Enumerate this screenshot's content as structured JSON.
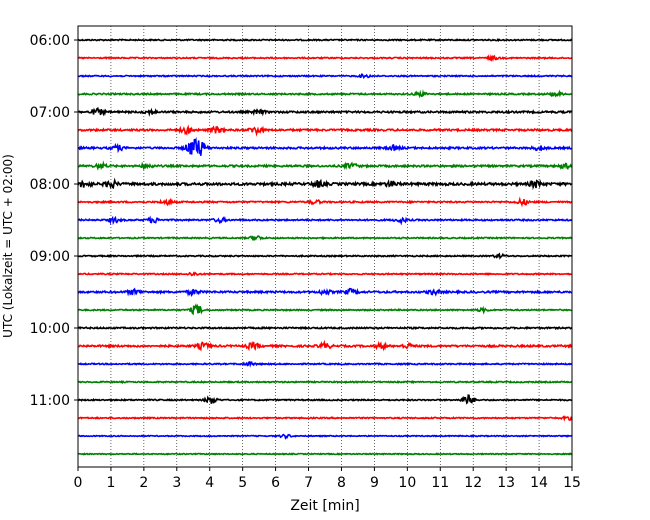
{
  "chart_data": {
    "type": "line",
    "title": "",
    "xlabel": "Zeit  [min]",
    "ylabel": "UTC (Lokalzeit = UTC + 02:00)",
    "xlim": [
      0,
      15
    ],
    "x_ticks": [
      "0",
      "1",
      "2",
      "3",
      "4",
      "5",
      "6",
      "7",
      "8",
      "9",
      "10",
      "11",
      "12",
      "13",
      "14",
      "15"
    ],
    "y_ticks": [
      "06:00",
      "07:00",
      "08:00",
      "09:00",
      "10:00",
      "11:00"
    ],
    "grid": "vertical dotted lines at each minute",
    "row_interval_min": 15,
    "row_colors": [
      "#000000",
      "#ff0000",
      "#0000ff",
      "#008000"
    ],
    "rows": [
      {
        "start": "06:00",
        "amplitude": 0.1,
        "events": []
      },
      {
        "start": "06:15",
        "amplitude": 0.1,
        "events": [
          {
            "t": 12.6,
            "amp": 0.25
          }
        ]
      },
      {
        "start": "06:30",
        "amplitude": 0.1,
        "events": [
          {
            "t": 8.7,
            "amp": 0.25
          }
        ]
      },
      {
        "start": "06:45",
        "amplitude": 0.12,
        "events": [
          {
            "t": 10.4,
            "amp": 0.3
          },
          {
            "t": 14.5,
            "amp": 0.3
          }
        ]
      },
      {
        "start": "07:00",
        "amplitude": 0.15,
        "events": [
          {
            "t": 0.6,
            "amp": 0.5
          },
          {
            "t": 2.2,
            "amp": 0.3
          },
          {
            "t": 5.5,
            "amp": 0.3
          }
        ]
      },
      {
        "start": "07:15",
        "amplitude": 0.15,
        "events": [
          {
            "t": 3.3,
            "amp": 0.5
          },
          {
            "t": 4.2,
            "amp": 0.5
          },
          {
            "t": 5.4,
            "amp": 0.6
          }
        ]
      },
      {
        "start": "07:30",
        "amplitude": 0.15,
        "events": [
          {
            "t": 1.2,
            "amp": 0.4
          },
          {
            "t": 3.45,
            "amp": 1.2
          },
          {
            "t": 3.7,
            "amp": 1.2
          },
          {
            "t": 9.6,
            "amp": 0.35
          },
          {
            "t": 14.0,
            "amp": 0.35
          }
        ]
      },
      {
        "start": "07:45",
        "amplitude": 0.15,
        "events": [
          {
            "t": 0.7,
            "amp": 0.35
          },
          {
            "t": 2.1,
            "amp": 0.35
          },
          {
            "t": 8.3,
            "amp": 0.4
          },
          {
            "t": 14.8,
            "amp": 0.35
          }
        ]
      },
      {
        "start": "08:00",
        "amplitude": 0.2,
        "events": [
          {
            "t": 0.2,
            "amp": 0.5
          },
          {
            "t": 1.0,
            "amp": 0.6
          },
          {
            "t": 7.3,
            "amp": 0.5
          },
          {
            "t": 9.5,
            "amp": 0.4
          },
          {
            "t": 13.9,
            "amp": 0.5
          }
        ]
      },
      {
        "start": "08:15",
        "amplitude": 0.12,
        "events": [
          {
            "t": 2.7,
            "amp": 0.35
          },
          {
            "t": 7.2,
            "amp": 0.3
          },
          {
            "t": 13.5,
            "amp": 0.45
          }
        ]
      },
      {
        "start": "08:30",
        "amplitude": 0.12,
        "events": [
          {
            "t": 1.1,
            "amp": 0.35
          },
          {
            "t": 2.3,
            "amp": 0.4
          },
          {
            "t": 4.3,
            "amp": 0.35
          },
          {
            "t": 9.8,
            "amp": 0.35
          }
        ]
      },
      {
        "start": "08:45",
        "amplitude": 0.1,
        "events": [
          {
            "t": 5.4,
            "amp": 0.4
          }
        ]
      },
      {
        "start": "09:00",
        "amplitude": 0.1,
        "events": [
          {
            "t": 12.8,
            "amp": 0.25
          }
        ]
      },
      {
        "start": "09:15",
        "amplitude": 0.1,
        "events": [
          {
            "t": 3.5,
            "amp": 0.25
          }
        ]
      },
      {
        "start": "09:30",
        "amplitude": 0.15,
        "events": [
          {
            "t": 1.7,
            "amp": 0.4
          },
          {
            "t": 3.5,
            "amp": 0.4
          },
          {
            "t": 7.5,
            "amp": 0.35
          },
          {
            "t": 8.3,
            "amp": 0.45
          },
          {
            "t": 10.8,
            "amp": 0.35
          }
        ]
      },
      {
        "start": "09:45",
        "amplitude": 0.1,
        "events": [
          {
            "t": 3.6,
            "amp": 0.8
          },
          {
            "t": 12.3,
            "amp": 0.25
          }
        ]
      },
      {
        "start": "10:00",
        "amplitude": 0.12,
        "events": []
      },
      {
        "start": "10:15",
        "amplitude": 0.15,
        "events": [
          {
            "t": 3.8,
            "amp": 0.5
          },
          {
            "t": 5.3,
            "amp": 0.45
          },
          {
            "t": 7.5,
            "amp": 0.45
          },
          {
            "t": 9.2,
            "amp": 0.35
          },
          {
            "t": 10.0,
            "amp": 0.35
          }
        ]
      },
      {
        "start": "10:30",
        "amplitude": 0.1,
        "events": [
          {
            "t": 5.2,
            "amp": 0.25
          }
        ]
      },
      {
        "start": "10:45",
        "amplitude": 0.1,
        "events": []
      },
      {
        "start": "11:00",
        "amplitude": 0.1,
        "events": [
          {
            "t": 4.05,
            "amp": 0.6
          },
          {
            "t": 11.85,
            "amp": 0.8
          }
        ]
      },
      {
        "start": "11:15",
        "amplitude": 0.1,
        "events": [
          {
            "t": 14.9,
            "amp": 0.25
          }
        ]
      },
      {
        "start": "11:30",
        "amplitude": 0.08,
        "events": [
          {
            "t": 6.3,
            "amp": 0.25
          }
        ]
      },
      {
        "start": "11:45",
        "amplitude": 0.08,
        "events": []
      }
    ]
  }
}
